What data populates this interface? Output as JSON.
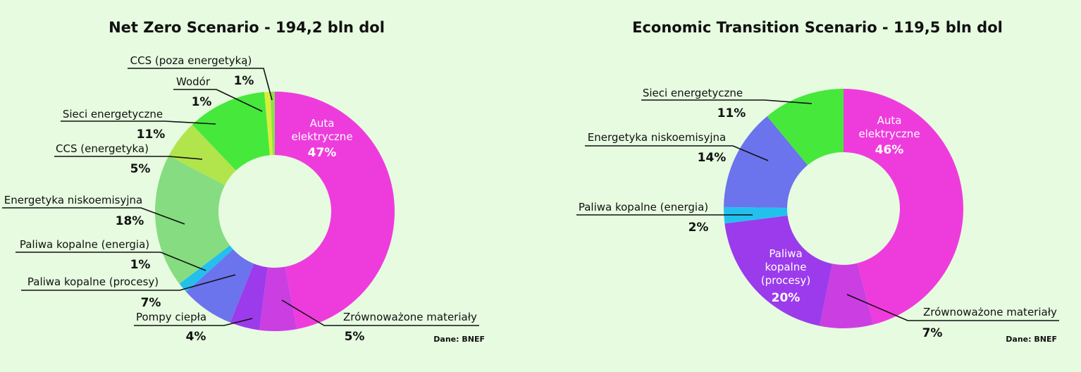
{
  "chart_data": [
    {
      "type": "pie",
      "title": "Net Zero Scenario - 194,2 bln dol",
      "source": "Dane: BNEF",
      "slices": [
        {
          "label": "Auta elektryczne",
          "pct_label": "47%",
          "value": 47.02,
          "color": "#ee3cdc"
        },
        {
          "label": "Zrównoważone materiały",
          "pct_label": "5%",
          "value": 5.0,
          "color": "#cb3ee2"
        },
        {
          "label": "Pompy ciepła",
          "pct_label": "4%",
          "value": 4.0,
          "color": "#9b3bec"
        },
        {
          "label": "Paliwa kopalne (procesy)",
          "pct_label": "7%",
          "value": 7.2,
          "color": "#6b74ec"
        },
        {
          "label": "Paliwa kopalne (energia)",
          "pct_label": "1%",
          "value": 1.4,
          "color": "#23c0ee"
        },
        {
          "label": "Energetyka niskoemisyjna",
          "pct_label": "18%",
          "value": 18.0,
          "color": "#86dc80"
        },
        {
          "label": "CCS (energetyka)",
          "pct_label": "5%",
          "value": 5.2,
          "color": "#b2e44c"
        },
        {
          "label": "Sieci energetyczne",
          "pct_label": "11%",
          "value": 10.7,
          "color": "#46e83c"
        },
        {
          "label": "Wodór",
          "pct_label": "1%",
          "value": 0.8,
          "color": "#d6ee3a"
        },
        {
          "label": "CCS (poza energetyką)",
          "pct_label": "1%",
          "value": 0.6,
          "color": "#8ce04c"
        }
      ]
    },
    {
      "type": "pie",
      "title": "Economic Transition Scenario - 119,5 bln dol",
      "source": "Dane: BNEF",
      "slices": [
        {
          "label": "Auta elektryczne",
          "pct_label": "46%",
          "value": 46.0,
          "color": "#ee3cdc"
        },
        {
          "label": "Zrównoważone materiały",
          "pct_label": "7%",
          "value": 7.2,
          "color": "#cb3ee2"
        },
        {
          "label": "Paliwa kopalne (procesy)",
          "pct_label": "20%",
          "value": 19.8,
          "color": "#9b3bec"
        },
        {
          "label": "Paliwa kopalne (energia)",
          "pct_label": "2%",
          "value": 2.2,
          "color": "#23c0ee"
        },
        {
          "label": "Energetyka niskoemisyjna",
          "pct_label": "14%",
          "value": 13.8,
          "color": "#6b74ec"
        },
        {
          "label": "Sieci energetyczne",
          "pct_label": "11%",
          "value": 11.0,
          "color": "#46e83c"
        }
      ]
    }
  ]
}
